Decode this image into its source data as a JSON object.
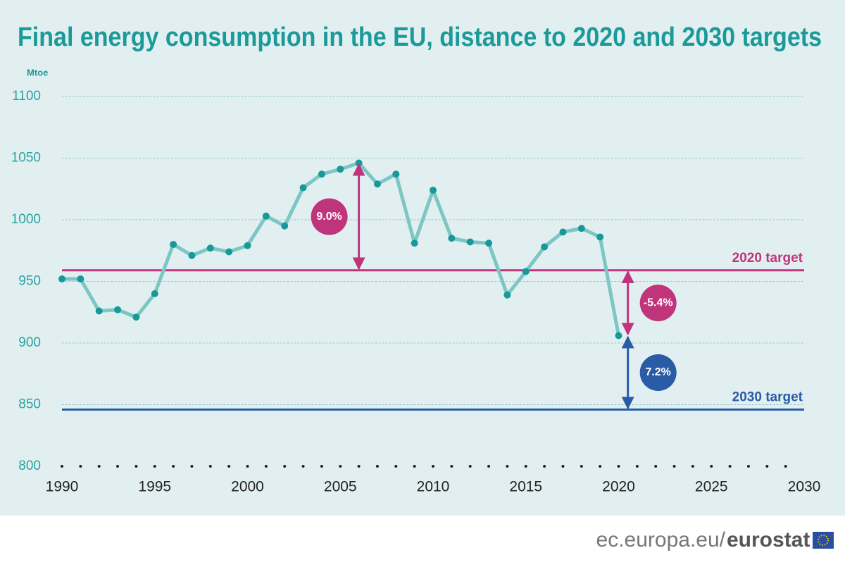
{
  "chart_data": {
    "type": "line",
    "title": "Final energy consumption in the EU, distance to 2020 and 2030 targets",
    "y_unit": "Mtoe",
    "x": [
      1990,
      1991,
      1992,
      1993,
      1994,
      1995,
      1996,
      1997,
      1998,
      1999,
      2000,
      2001,
      2002,
      2003,
      2004,
      2005,
      2006,
      2007,
      2008,
      2009,
      2010,
      2011,
      2012,
      2013,
      2014,
      2015,
      2016,
      2017,
      2018,
      2019,
      2020
    ],
    "values": [
      952,
      952,
      926,
      927,
      921,
      940,
      980,
      971,
      977,
      974,
      979,
      1003,
      995,
      1026,
      1037,
      1041,
      1046,
      1029,
      1037,
      981,
      1024,
      985,
      982,
      981,
      939,
      958,
      978,
      990,
      993,
      986,
      906
    ],
    "color": "#7cc6c4",
    "marker_color": "#17999a",
    "xlim": [
      1990,
      2030
    ],
    "xticks": [
      1990,
      1995,
      2000,
      2005,
      2010,
      2015,
      2020,
      2025,
      2030
    ],
    "ylim": [
      800,
      1100
    ],
    "yticks": [
      800,
      850,
      900,
      950,
      1000,
      1050,
      1100
    ],
    "grid": true,
    "reference_lines": [
      {
        "label": "2020 target",
        "value": 959,
        "color": "#c0347c"
      },
      {
        "label": "2030 target",
        "value": 846,
        "color": "#2a5ba6"
      }
    ],
    "annotations": [
      {
        "label": "9.0%",
        "x": 2006,
        "from": 1046,
        "to": 959,
        "side": "left",
        "color": "#c0347c"
      },
      {
        "label": "-5.4%",
        "x": 2020.5,
        "from": 959,
        "to": 906,
        "side": "right",
        "color": "#c0347c"
      },
      {
        "label": "7.2%",
        "x": 2020.5,
        "from": 906,
        "to": 846,
        "side": "right",
        "color": "#2a5ba6"
      }
    ]
  },
  "footer": {
    "site": "ec.europa.eu/",
    "brand": "eurostat"
  }
}
